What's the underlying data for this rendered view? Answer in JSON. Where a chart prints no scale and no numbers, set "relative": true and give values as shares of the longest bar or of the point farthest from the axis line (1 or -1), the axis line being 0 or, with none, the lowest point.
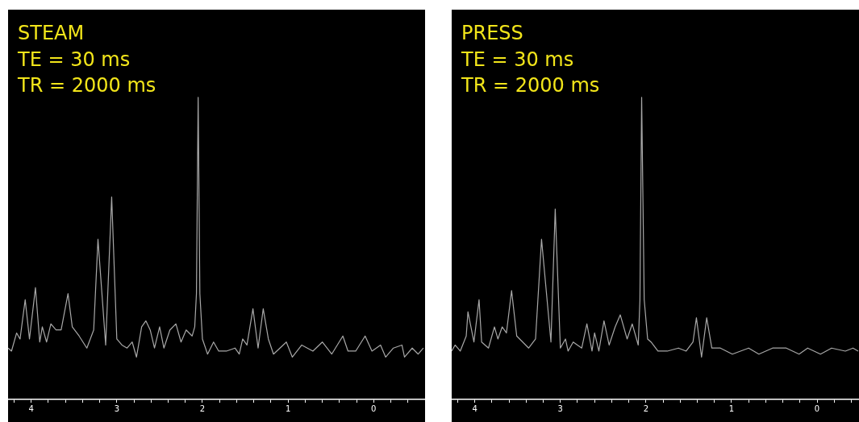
{
  "chart_data": [
    {
      "type": "line",
      "title": "STEAM",
      "annotations": [
        "TE = 30 ms",
        "TR = 2000 ms"
      ],
      "relative": true,
      "xlim": [
        4.27,
        -0.6
      ],
      "xticks": [
        {
          "value": 4.2,
          "label": null
        },
        4,
        {
          "value": 3.8,
          "label": null
        },
        {
          "value": 3.6,
          "label": null
        },
        {
          "value": 3.4,
          "label": null
        },
        {
          "value": 3.2,
          "label": null
        },
        3,
        {
          "value": 2.8,
          "label": null
        },
        {
          "value": 2.6,
          "label": null
        },
        {
          "value": 2.4,
          "label": null
        },
        {
          "value": 2.2,
          "label": null
        },
        2,
        {
          "value": 1.8,
          "label": null
        },
        {
          "value": 1.6,
          "label": null
        },
        {
          "value": 1.4,
          "label": null
        },
        {
          "value": 1.2,
          "label": null
        },
        1,
        {
          "value": 0.8,
          "label": null
        },
        {
          "value": 0.6,
          "label": null
        },
        {
          "value": 0.4,
          "label": null
        },
        {
          "value": 0.2,
          "label": null
        },
        0,
        {
          "value": -0.2,
          "label": null
        },
        {
          "value": -0.4,
          "label": null
        }
      ],
      "x": [
        4.27,
        4.23,
        4.17,
        4.13,
        4.07,
        4.02,
        3.95,
        3.9,
        3.87,
        3.82,
        3.77,
        3.71,
        3.65,
        3.57,
        3.52,
        3.44,
        3.35,
        3.27,
        3.22,
        3.13,
        3.06,
        3.0,
        2.94,
        2.88,
        2.82,
        2.77,
        2.71,
        2.66,
        2.61,
        2.56,
        2.5,
        2.45,
        2.38,
        2.31,
        2.25,
        2.19,
        2.12,
        2.09,
        2.07,
        2.05,
        2.03,
        2.0,
        1.94,
        1.87,
        1.81,
        1.72,
        1.62,
        1.57,
        1.53,
        1.48,
        1.41,
        1.35,
        1.29,
        1.23,
        1.17,
        1.02,
        0.95,
        0.84,
        0.71,
        0.6,
        0.49,
        0.36,
        0.3,
        0.21,
        0.1,
        0.02,
        -0.08,
        -0.14,
        -0.23,
        -0.33,
        -0.36,
        -0.45,
        -0.52,
        -0.58
      ],
      "series": [
        {
          "color": "#a8a8a8",
          "values": [
            0.17,
            0.16,
            0.22,
            0.2,
            0.33,
            0.2,
            0.37,
            0.19,
            0.24,
            0.19,
            0.25,
            0.23,
            0.23,
            0.35,
            0.24,
            0.21,
            0.17,
            0.23,
            0.53,
            0.18,
            0.67,
            0.2,
            0.18,
            0.17,
            0.19,
            0.14,
            0.24,
            0.26,
            0.23,
            0.17,
            0.24,
            0.17,
            0.23,
            0.25,
            0.19,
            0.23,
            0.21,
            0.24,
            0.35,
            1.0,
            0.35,
            0.2,
            0.15,
            0.19,
            0.16,
            0.16,
            0.17,
            0.15,
            0.2,
            0.18,
            0.3,
            0.17,
            0.3,
            0.2,
            0.15,
            0.19,
            0.14,
            0.18,
            0.16,
            0.19,
            0.15,
            0.21,
            0.16,
            0.16,
            0.21,
            0.16,
            0.18,
            0.14,
            0.17,
            0.18,
            0.14,
            0.17,
            0.15,
            0.17
          ]
        }
      ]
    },
    {
      "type": "line",
      "title": "PRESS",
      "annotations": [
        "TE = 30 ms",
        "TR = 2000 ms"
      ],
      "relative": true,
      "xlim": [
        4.27,
        -0.49
      ],
      "xticks": [
        {
          "value": 4.2,
          "label": null
        },
        4,
        {
          "value": 3.8,
          "label": null
        },
        {
          "value": 3.6,
          "label": null
        },
        {
          "value": 3.4,
          "label": null
        },
        {
          "value": 3.2,
          "label": null
        },
        3,
        {
          "value": 2.8,
          "label": null
        },
        {
          "value": 2.6,
          "label": null
        },
        {
          "value": 2.4,
          "label": null
        },
        {
          "value": 2.2,
          "label": null
        },
        2,
        {
          "value": 1.8,
          "label": null
        },
        {
          "value": 1.6,
          "label": null
        },
        {
          "value": 1.4,
          "label": null
        },
        {
          "value": 1.2,
          "label": null
        },
        1,
        {
          "value": 0.8,
          "label": null
        },
        {
          "value": 0.6,
          "label": null
        },
        {
          "value": 0.4,
          "label": null
        },
        {
          "value": 0.2,
          "label": null
        },
        0,
        {
          "value": -0.2,
          "label": null
        },
        {
          "value": -0.4,
          "label": null
        }
      ],
      "x": [
        4.27,
        4.23,
        4.17,
        4.1,
        4.08,
        4.01,
        3.95,
        3.92,
        3.84,
        3.77,
        3.73,
        3.68,
        3.63,
        3.57,
        3.51,
        3.37,
        3.29,
        3.22,
        3.11,
        3.06,
        3.0,
        2.94,
        2.91,
        2.85,
        2.75,
        2.69,
        2.63,
        2.6,
        2.55,
        2.49,
        2.43,
        2.36,
        2.3,
        2.22,
        2.16,
        2.09,
        2.07,
        2.05,
        2.02,
        1.98,
        1.94,
        1.86,
        1.75,
        1.62,
        1.53,
        1.45,
        1.41,
        1.35,
        1.29,
        1.23,
        1.13,
        0.99,
        0.8,
        0.68,
        0.52,
        0.36,
        0.21,
        0.11,
        -0.04,
        -0.17,
        -0.33,
        -0.42,
        -0.48
      ],
      "series": [
        {
          "color": "#a8a8a8",
          "values": [
            0.16,
            0.18,
            0.16,
            0.21,
            0.29,
            0.19,
            0.33,
            0.19,
            0.17,
            0.24,
            0.2,
            0.24,
            0.22,
            0.36,
            0.21,
            0.17,
            0.2,
            0.53,
            0.19,
            0.63,
            0.17,
            0.2,
            0.16,
            0.19,
            0.17,
            0.25,
            0.16,
            0.22,
            0.16,
            0.26,
            0.18,
            0.24,
            0.28,
            0.2,
            0.25,
            0.18,
            0.33,
            1.0,
            0.33,
            0.2,
            0.19,
            0.16,
            0.16,
            0.17,
            0.16,
            0.19,
            0.27,
            0.14,
            0.27,
            0.17,
            0.17,
            0.15,
            0.17,
            0.15,
            0.17,
            0.17,
            0.15,
            0.17,
            0.15,
            0.17,
            0.16,
            0.17,
            0.16
          ]
        }
      ]
    }
  ]
}
